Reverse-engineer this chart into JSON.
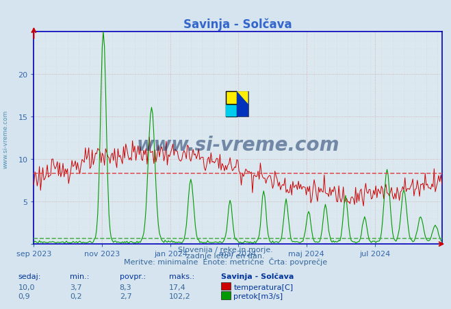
{
  "title": "Savinja - Solčava",
  "title_color": "#3366cc",
  "bg_color": "#d6e4f0",
  "plot_bg_color": "#dce8f0",
  "subtitle_lines": [
    "Slovenija / reke in morje.",
    "zadnje leto / en dan.",
    "Meritve: minimalne  Enote: metrične  Črta: povprečje"
  ],
  "subtitle_color": "#336699",
  "watermark_text": "www.si-vreme.com",
  "watermark_color": "#1a3a6a",
  "watermark_alpha": 0.55,
  "temp_color": "#cc0000",
  "flow_color": "#009900",
  "temp_avg": 8.3,
  "flow_avg_scaled": 0.66,
  "temp_avg_color": "#dd4444",
  "flow_avg_color": "#44aa44",
  "legend_items": [
    {
      "label": "temperatura[C]",
      "color": "#cc0000"
    },
    {
      "label": "pretok[m3/s]",
      "color": "#009900"
    }
  ],
  "stats": {
    "headers": [
      "sedaj:",
      "min.:",
      "povpr.:",
      "maks.:",
      "Savinja - Solčava"
    ],
    "temp_row": [
      "10,0",
      "3,7",
      "8,3",
      "17,4"
    ],
    "flow_row": [
      "0,9",
      "0,2",
      "2,7",
      "102,2"
    ]
  },
  "axis_color": "#0000bb",
  "tick_color": "#3366aa",
  "arrow_color": "#cc0000",
  "left_watermark": "www.si-vreme.com",
  "ytick_labels": [
    "",
    "5",
    "10",
    "15",
    "20",
    ""
  ],
  "ytick_vals": [
    0,
    5,
    10,
    15,
    20,
    25
  ],
  "n_days": 365,
  "flow_max_display": 25.0,
  "flow_real_max": 102.2
}
